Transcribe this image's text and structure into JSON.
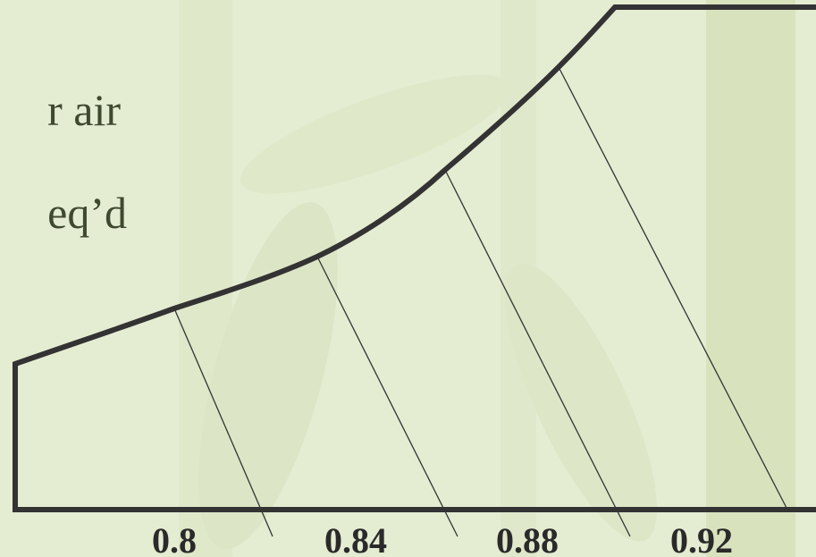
{
  "text_lines": [
    "r air",
    "eq’d"
  ],
  "labels": [
    "0.8",
    "0.84",
    "0.88",
    "0.92"
  ]
}
